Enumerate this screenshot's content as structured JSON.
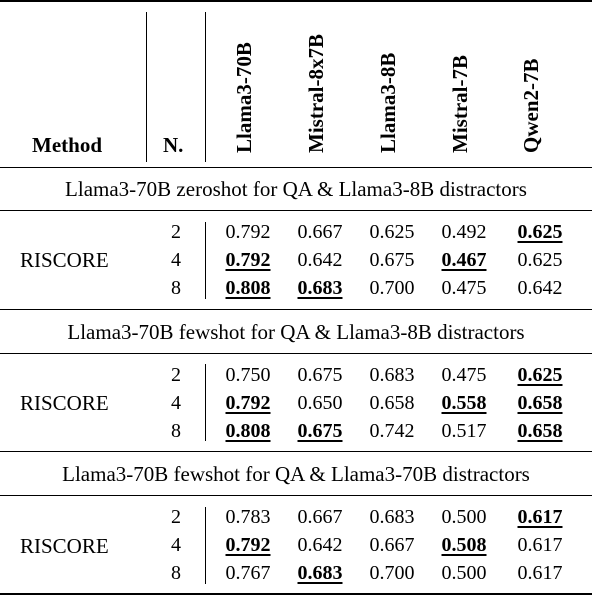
{
  "header": {
    "method": "Method",
    "n": "N.",
    "models": [
      "Llama3-70B",
      "Mistral-8x7B",
      "Llama3-8B",
      "Mistral-7B",
      "Qwen2-7B"
    ]
  },
  "sections": [
    {
      "title": "Llama3-70B zeroshot for QA & Llama3-8B distractors",
      "method": "RISCORE",
      "rows": [
        {
          "n": "2",
          "values": [
            "0.792",
            "0.667",
            "0.625",
            "0.492",
            "0.625"
          ],
          "highlight": [
            false,
            false,
            false,
            false,
            true
          ]
        },
        {
          "n": "4",
          "values": [
            "0.792",
            "0.642",
            "0.675",
            "0.467",
            "0.625"
          ],
          "highlight": [
            true,
            false,
            false,
            true,
            false
          ]
        },
        {
          "n": "8",
          "values": [
            "0.808",
            "0.683",
            "0.700",
            "0.475",
            "0.642"
          ],
          "highlight": [
            true,
            true,
            false,
            false,
            false
          ]
        }
      ]
    },
    {
      "title": "Llama3-70B fewshot for QA & Llama3-8B distractors",
      "method": "RISCORE",
      "rows": [
        {
          "n": "2",
          "values": [
            "0.750",
            "0.675",
            "0.683",
            "0.475",
            "0.625"
          ],
          "highlight": [
            false,
            false,
            false,
            false,
            true
          ]
        },
        {
          "n": "4",
          "values": [
            "0.792",
            "0.650",
            "0.658",
            "0.558",
            "0.658"
          ],
          "highlight": [
            true,
            false,
            false,
            true,
            true
          ]
        },
        {
          "n": "8",
          "values": [
            "0.808",
            "0.675",
            "0.742",
            "0.517",
            "0.658"
          ],
          "highlight": [
            true,
            true,
            false,
            false,
            true
          ]
        }
      ]
    },
    {
      "title": "Llama3-70B fewshot for QA & Llama3-70B distractors",
      "method": "RISCORE",
      "rows": [
        {
          "n": "2",
          "values": [
            "0.783",
            "0.667",
            "0.683",
            "0.500",
            "0.617"
          ],
          "highlight": [
            false,
            false,
            false,
            false,
            true
          ]
        },
        {
          "n": "4",
          "values": [
            "0.792",
            "0.642",
            "0.667",
            "0.508",
            "0.617"
          ],
          "highlight": [
            true,
            false,
            false,
            true,
            false
          ]
        },
        {
          "n": "8",
          "values": [
            "0.767",
            "0.683",
            "0.700",
            "0.500",
            "0.617"
          ],
          "highlight": [
            false,
            true,
            false,
            false,
            false
          ]
        }
      ]
    }
  ]
}
